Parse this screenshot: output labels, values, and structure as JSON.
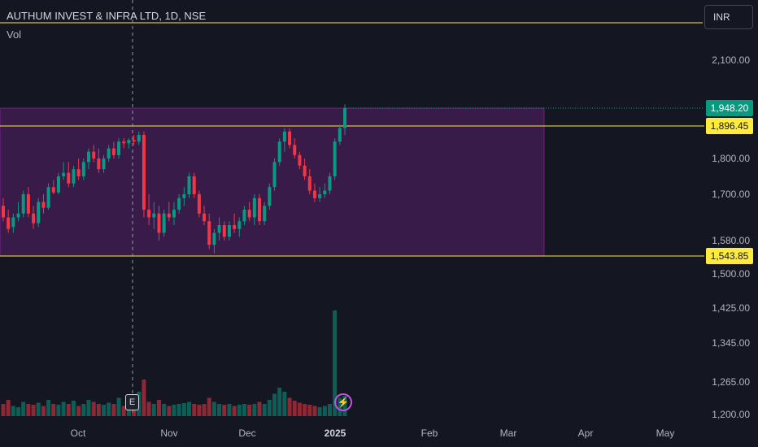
{
  "header": {
    "symbol_title": "AUTHUM INVEST & INFRA LTD, 1D, NSE",
    "volume_label": "Vol",
    "currency_button": "INR"
  },
  "price_axis": {
    "ticks": [
      "2,100.00",
      "1,800.00",
      "1,700.00",
      "1,580.00",
      "1,500.00",
      "1,425.00",
      "1,345.00",
      "1,265.00",
      "1,200.00"
    ]
  },
  "time_axis": {
    "ticks": [
      "Oct",
      "Nov",
      "Dec",
      "2025",
      "Feb",
      "Mar",
      "Apr",
      "May"
    ]
  },
  "price_badges": {
    "last_price": "1,948.20",
    "resistance": "1,896.45",
    "support": "1,543.85"
  },
  "markers": {
    "earnings": "E",
    "event": "⚡"
  },
  "colors": {
    "background": "#141722",
    "bull": "#089981",
    "bear": "#f23645",
    "horizontal_line": "#ffeb3b",
    "range_zone": "#9c27b0",
    "earnings_marker_border": "#d1d4dc",
    "event_marker": "#c452e6"
  },
  "chart_data": {
    "type": "candlestick",
    "title": "AUTHUM INVEST & INFRA LTD, 1D, NSE",
    "currency": "INR",
    "horizontal_lines": [
      1896.45,
      1543.85
    ],
    "last_price": 1948.2,
    "range_zone": {
      "price_low": 1543.85,
      "price_high": 1948.2
    },
    "candles": [
      [
        1670,
        1690,
        1630,
        1640,
        30
      ],
      [
        1640,
        1660,
        1600,
        1610,
        40
      ],
      [
        1615,
        1650,
        1600,
        1640,
        25
      ],
      [
        1640,
        1680,
        1630,
        1650,
        22
      ],
      [
        1650,
        1710,
        1640,
        1700,
        35
      ],
      [
        1700,
        1720,
        1640,
        1650,
        30
      ],
      [
        1650,
        1670,
        1610,
        1625,
        28
      ],
      [
        1625,
        1690,
        1615,
        1680,
        33
      ],
      [
        1680,
        1700,
        1650,
        1665,
        25
      ],
      [
        1665,
        1730,
        1660,
        1720,
        40
      ],
      [
        1720,
        1740,
        1700,
        1705,
        30
      ],
      [
        1705,
        1760,
        1700,
        1750,
        28
      ],
      [
        1750,
        1790,
        1740,
        1760,
        35
      ],
      [
        1760,
        1790,
        1720,
        1730,
        30
      ],
      [
        1730,
        1780,
        1720,
        1770,
        38
      ],
      [
        1770,
        1800,
        1740,
        1750,
        25
      ],
      [
        1750,
        1800,
        1740,
        1790,
        30
      ],
      [
        1790,
        1830,
        1770,
        1820,
        40
      ],
      [
        1820,
        1840,
        1790,
        1800,
        35
      ],
      [
        1800,
        1830,
        1760,
        1770,
        30
      ],
      [
        1770,
        1810,
        1760,
        1800,
        28
      ],
      [
        1800,
        1840,
        1790,
        1830,
        33
      ],
      [
        1830,
        1850,
        1800,
        1810,
        30
      ],
      [
        1810,
        1860,
        1800,
        1850,
        45
      ],
      [
        1850,
        1860,
        1830,
        1845,
        25
      ],
      [
        1845,
        1860,
        1830,
        1855,
        30
      ],
      [
        1855,
        1870,
        1840,
        1850,
        28
      ],
      [
        1850,
        1880,
        1840,
        1870,
        60
      ],
      [
        1870,
        1880,
        1640,
        1660,
        90
      ],
      [
        1660,
        1700,
        1620,
        1640,
        35
      ],
      [
        1640,
        1680,
        1610,
        1650,
        30
      ],
      [
        1650,
        1670,
        1580,
        1600,
        40
      ],
      [
        1600,
        1660,
        1590,
        1650,
        30
      ],
      [
        1650,
        1680,
        1630,
        1640,
        25
      ],
      [
        1640,
        1680,
        1620,
        1660,
        28
      ],
      [
        1660,
        1700,
        1650,
        1690,
        30
      ],
      [
        1690,
        1720,
        1670,
        1700,
        32
      ],
      [
        1700,
        1760,
        1690,
        1750,
        35
      ],
      [
        1750,
        1760,
        1690,
        1700,
        30
      ],
      [
        1700,
        1710,
        1640,
        1650,
        28
      ],
      [
        1650,
        1670,
        1620,
        1630,
        30
      ],
      [
        1630,
        1650,
        1560,
        1570,
        45
      ],
      [
        1570,
        1610,
        1550,
        1600,
        35
      ],
      [
        1600,
        1640,
        1580,
        1620,
        30
      ],
      [
        1620,
        1630,
        1580,
        1590,
        28
      ],
      [
        1590,
        1630,
        1580,
        1620,
        30
      ],
      [
        1620,
        1650,
        1600,
        1610,
        25
      ],
      [
        1610,
        1640,
        1590,
        1630,
        28
      ],
      [
        1630,
        1670,
        1620,
        1660,
        30
      ],
      [
        1660,
        1680,
        1630,
        1640,
        28
      ],
      [
        1640,
        1700,
        1620,
        1690,
        30
      ],
      [
        1690,
        1700,
        1620,
        1630,
        35
      ],
      [
        1630,
        1680,
        1620,
        1670,
        30
      ],
      [
        1670,
        1730,
        1660,
        1720,
        40
      ],
      [
        1720,
        1800,
        1710,
        1790,
        55
      ],
      [
        1790,
        1860,
        1780,
        1850,
        70
      ],
      [
        1850,
        1890,
        1820,
        1880,
        60
      ],
      [
        1880,
        1890,
        1830,
        1840,
        45
      ],
      [
        1840,
        1860,
        1800,
        1810,
        38
      ],
      [
        1810,
        1820,
        1770,
        1780,
        33
      ],
      [
        1780,
        1800,
        1740,
        1750,
        30
      ],
      [
        1750,
        1770,
        1700,
        1710,
        28
      ],
      [
        1710,
        1730,
        1680,
        1690,
        25
      ],
      [
        1690,
        1720,
        1680,
        1700,
        22
      ],
      [
        1700,
        1730,
        1690,
        1710,
        25
      ],
      [
        1710,
        1760,
        1700,
        1750,
        30
      ],
      [
        1750,
        1860,
        1740,
        1850,
        260
      ],
      [
        1850,
        1900,
        1840,
        1890,
        45
      ],
      [
        1890,
        1960,
        1870,
        1948.2,
        50
      ]
    ],
    "x_ticks": [
      "Oct",
      "Nov",
      "Dec",
      "2025",
      "Feb",
      "Mar",
      "Apr",
      "May"
    ],
    "y_ticks": [
      2100,
      1800,
      1700,
      1580,
      1500,
      1425,
      1345,
      1265,
      1200
    ]
  }
}
